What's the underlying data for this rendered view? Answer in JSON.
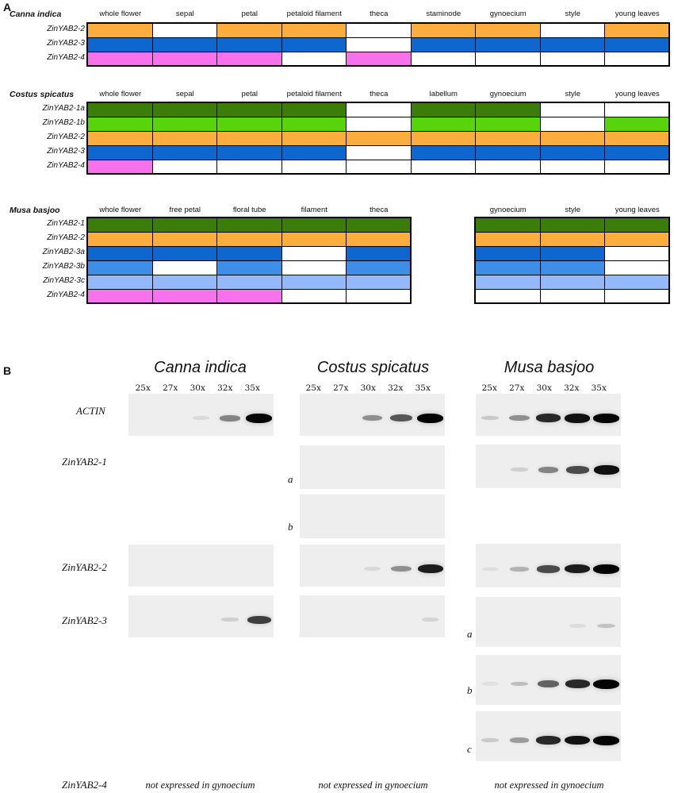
{
  "panel_a": {
    "letter": "A",
    "colors": {
      "green_dark": "#3a7d0a",
      "green_light": "#57d40b",
      "orange": "#fbae3c",
      "blue": "#0e67cf",
      "blue_mid": "#3e8ee8",
      "blue_light": "#93b9fb",
      "pink": "#f770ec",
      "white": "#ffffff"
    },
    "tables": [
      {
        "species": "Canna indica",
        "columns": [
          "whole flower",
          "sepal",
          "petal",
          "petaloid filament",
          "theca",
          "staminode",
          "gynoecium",
          "style",
          "young leaves"
        ],
        "rows": [
          {
            "gene": "ZinYAB2-2",
            "cells": [
              "orange",
              "white",
              "orange",
              "orange",
              "white",
              "orange",
              "orange",
              "white",
              "orange"
            ]
          },
          {
            "gene": "ZinYAB2-3",
            "cells": [
              "blue",
              "blue",
              "blue",
              "blue",
              "white",
              "blue",
              "blue",
              "blue",
              "blue"
            ]
          },
          {
            "gene": "ZinYAB2-4",
            "cells": [
              "pink",
              "pink",
              "pink",
              "white",
              "pink",
              "white",
              "white",
              "white",
              "white"
            ]
          }
        ]
      },
      {
        "species": "Costus spicatus",
        "columns": [
          "whole flower",
          "sepal",
          "petal",
          "petaloid filament",
          "theca",
          "labellum",
          "gynoecium",
          "style",
          "young leaves"
        ],
        "rows": [
          {
            "gene": "ZinYAB2-1a",
            "cells": [
              "green_dark",
              "green_dark",
              "green_dark",
              "green_dark",
              "white",
              "green_dark",
              "green_dark",
              "white",
              "white"
            ]
          },
          {
            "gene": "ZinYAB2-1b",
            "cells": [
              "green_light",
              "green_light",
              "green_light",
              "green_light",
              "white",
              "green_light",
              "green_light",
              "white",
              "green_light"
            ]
          },
          {
            "gene": "ZinYAB2-2",
            "cells": [
              "orange",
              "orange",
              "orange",
              "orange",
              "orange",
              "orange",
              "orange",
              "orange",
              "orange"
            ]
          },
          {
            "gene": "ZinYAB2-3",
            "cells": [
              "blue",
              "blue",
              "blue",
              "blue",
              "white",
              "blue",
              "blue",
              "blue",
              "blue"
            ]
          },
          {
            "gene": "ZinYAB2-4",
            "cells": [
              "pink",
              "white",
              "white",
              "white",
              "white",
              "white",
              "white",
              "white",
              "white"
            ]
          }
        ]
      },
      {
        "species": "Musa basjoo",
        "columns": [
          "whole flower",
          "free petal",
          "floral tube",
          "filament",
          "theca"
        ],
        "columns_right": [
          "gynoecium",
          "style",
          "young leaves"
        ],
        "rows": [
          {
            "gene": "ZinYAB2-1",
            "cells": [
              "green_dark",
              "green_dark",
              "green_dark",
              "green_dark",
              "green_dark"
            ],
            "cells_right": [
              "green_dark",
              "green_dark",
              "green_dark"
            ]
          },
          {
            "gene": "ZinYAB2-2",
            "cells": [
              "orange",
              "orange",
              "orange",
              "orange",
              "orange"
            ],
            "cells_right": [
              "orange",
              "orange",
              "orange"
            ]
          },
          {
            "gene": "ZinYAB2-3a",
            "cells": [
              "blue",
              "blue",
              "blue",
              "white",
              "blue"
            ],
            "cells_right": [
              "blue",
              "blue",
              "white"
            ]
          },
          {
            "gene": "ZinYAB2-3b",
            "cells": [
              "blue_mid",
              "white",
              "blue_mid",
              "white",
              "blue_mid"
            ],
            "cells_right": [
              "blue_mid",
              "blue_mid",
              "white"
            ]
          },
          {
            "gene": "ZinYAB2-3c",
            "cells": [
              "blue_light",
              "blue_light",
              "blue_light",
              "blue_light",
              "blue_light"
            ],
            "cells_right": [
              "blue_light",
              "blue_light",
              "blue_light"
            ]
          },
          {
            "gene": "ZinYAB2-4",
            "cells": [
              "pink",
              "pink",
              "pink",
              "white",
              "white"
            ],
            "cells_right": [
              "white",
              "white",
              "white"
            ]
          }
        ]
      }
    ]
  },
  "panel_b": {
    "letter": "B",
    "species": [
      "Canna indica",
      "Costus spicatus",
      "Musa basjoo"
    ],
    "cycles": [
      "25x",
      "27x",
      "30x",
      "32x",
      "35x"
    ],
    "genes": [
      "ACTIN",
      "ZinYAB2-1",
      "ZinYAB2-2",
      "ZinYAB2-3"
    ],
    "sub_labels": {
      "a": "a",
      "b": "b",
      "c": "c"
    },
    "footer_gene": "ZinYAB2-4",
    "footer_text": "not expressed in gynoecium",
    "gels": [
      {
        "name": "canna-actin",
        "bands": [
          0,
          0,
          0.08,
          0.45,
          1.0
        ]
      },
      {
        "name": "canna-yab2-2",
        "bands": [
          0,
          0,
          0,
          0,
          0
        ]
      },
      {
        "name": "canna-yab2-3",
        "bands": [
          0,
          0,
          0,
          0.12,
          0.75
        ]
      },
      {
        "name": "costus-actin",
        "bands": [
          0,
          0,
          0.4,
          0.65,
          1.0
        ]
      },
      {
        "name": "costus-yab2-1a",
        "bands": [
          0,
          0,
          0,
          0,
          0
        ]
      },
      {
        "name": "costus-yab2-1b",
        "bands": [
          0,
          0,
          0,
          0,
          0
        ]
      },
      {
        "name": "costus-yab2-2",
        "bands": [
          0,
          0,
          0.08,
          0.4,
          0.9
        ]
      },
      {
        "name": "costus-yab2-3",
        "bands": [
          0,
          0,
          0,
          0,
          0.1
        ]
      },
      {
        "name": "musa-actin",
        "bands": [
          0.15,
          0.4,
          0.85,
          0.95,
          1.0
        ]
      },
      {
        "name": "musa-yab2-1",
        "bands": [
          0,
          0.12,
          0.45,
          0.7,
          0.95
        ]
      },
      {
        "name": "musa-yab2-2",
        "bands": [
          0.06,
          0.25,
          0.7,
          0.9,
          1.0
        ]
      },
      {
        "name": "musa-yab2-3a",
        "bands": [
          0,
          0,
          0,
          0.06,
          0.18
        ]
      },
      {
        "name": "musa-yab2-3b",
        "bands": [
          0.05,
          0.2,
          0.6,
          0.85,
          1.0
        ]
      },
      {
        "name": "musa-yab2-3c",
        "bands": [
          0.15,
          0.35,
          0.85,
          0.95,
          1.0
        ]
      }
    ]
  }
}
